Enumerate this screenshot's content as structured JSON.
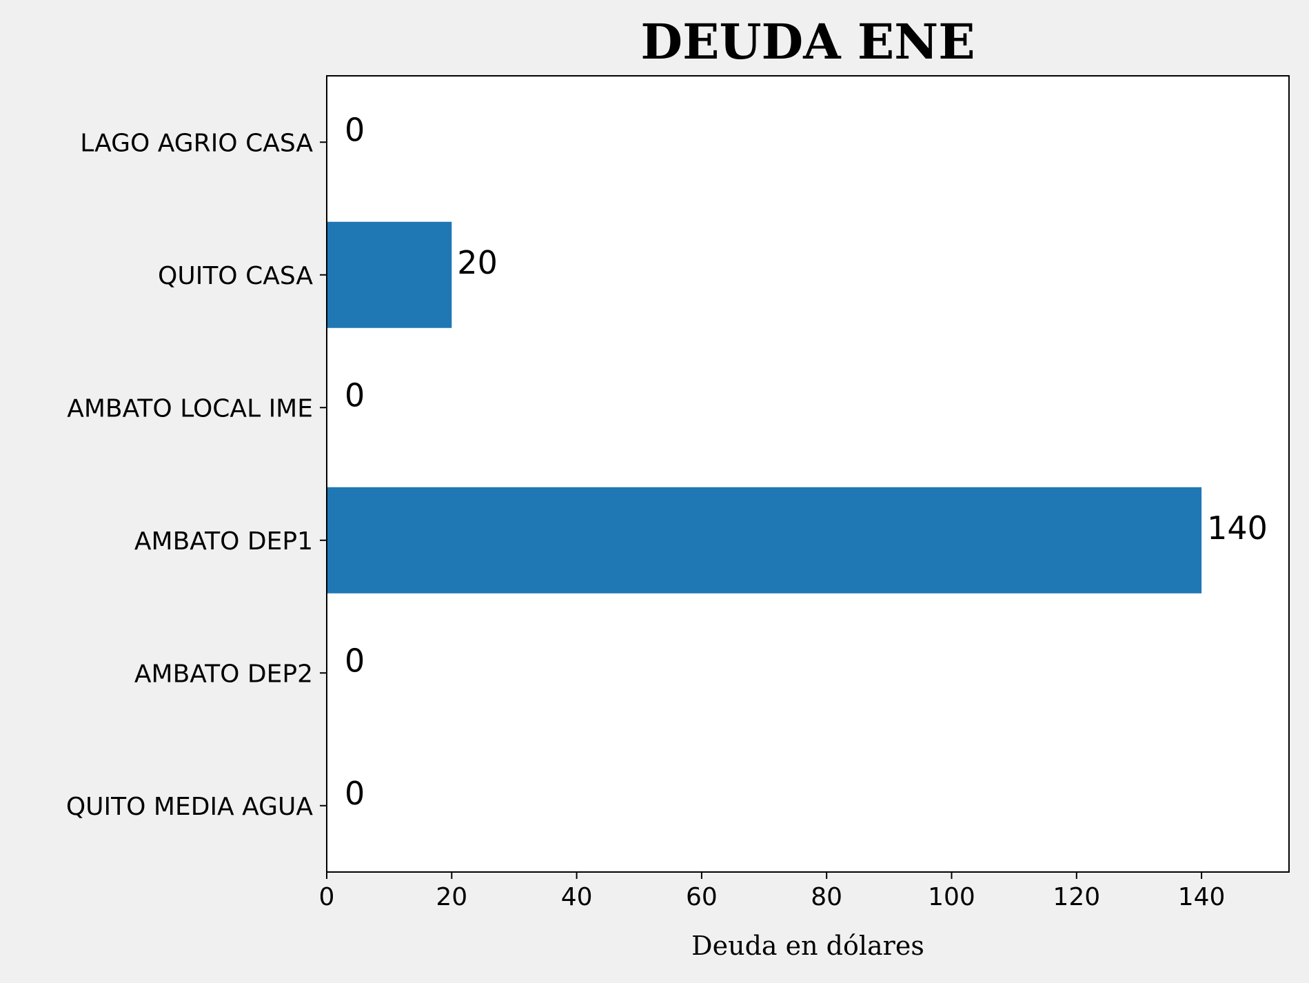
{
  "chart_data": {
    "type": "bar",
    "orientation": "horizontal",
    "title": "DEUDA ENE",
    "xlabel": "Deuda en dólares",
    "ylabel": "",
    "categories": [
      "LAGO AGRIO CASA",
      "QUITO CASA",
      "AMBATO LOCAL IME",
      "AMBATO DEP1",
      "AMBATO DEP2",
      "QUITO MEDIA AGUA"
    ],
    "values": [
      0,
      20,
      0,
      140,
      0,
      0
    ],
    "value_labels": [
      "0",
      "20",
      "0",
      "140",
      "0",
      "0"
    ],
    "xlim": [
      0,
      154
    ],
    "xticks": [
      0,
      20,
      40,
      60,
      80,
      100,
      120,
      140
    ],
    "xtick_labels": [
      "0",
      "20",
      "40",
      "60",
      "80",
      "100",
      "120",
      "140"
    ],
    "grid": false,
    "bar_color": "#1f77b4"
  }
}
